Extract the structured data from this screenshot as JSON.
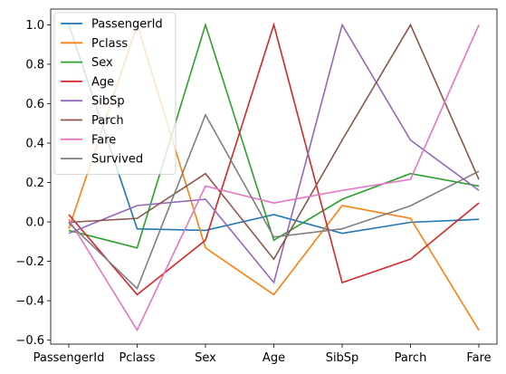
{
  "chart_data": {
    "type": "line",
    "title": "",
    "xlabel": "",
    "ylabel": "",
    "categories": [
      "PassengerId",
      "Pclass",
      "Sex",
      "Age",
      "SibSp",
      "Parch",
      "Fare"
    ],
    "ylim": [
      -0.62,
      1.08
    ],
    "yticks": [
      "1.0",
      "0.8",
      "0.6",
      "0.4",
      "0.2",
      "0.0",
      "−0.2",
      "−0.4",
      "−0.6"
    ],
    "ytick_values": [
      1.0,
      0.8,
      0.6,
      0.4,
      0.2,
      0.0,
      -0.2,
      -0.4,
      -0.6
    ],
    "grid": false,
    "legend_position": "top-left",
    "series": [
      {
        "name": "PassengerId",
        "color": "#1f77b4",
        "values": [
          1.0,
          -0.035,
          -0.043,
          0.037,
          -0.058,
          -0.002,
          0.013
        ]
      },
      {
        "name": "Pclass",
        "color": "#ff7f0e",
        "values": [
          -0.035,
          1.0,
          -0.132,
          -0.369,
          0.083,
          0.018,
          -0.549
        ]
      },
      {
        "name": "Sex",
        "color": "#2ca02c",
        "values": [
          -0.043,
          -0.132,
          1.0,
          -0.093,
          0.115,
          0.245,
          0.182
        ]
      },
      {
        "name": "Age",
        "color": "#d62728",
        "values": [
          0.037,
          -0.369,
          -0.093,
          1.0,
          -0.308,
          -0.189,
          0.096
        ]
      },
      {
        "name": "SibSp",
        "color": "#9467bd",
        "values": [
          -0.058,
          0.083,
          0.115,
          -0.308,
          1.0,
          0.415,
          0.16
        ]
      },
      {
        "name": "Parch",
        "color": "#8c564b",
        "values": [
          -0.002,
          0.018,
          0.245,
          -0.189,
          0.415,
          1.0,
          0.216
        ]
      },
      {
        "name": "Fare",
        "color": "#e377c2",
        "values": [
          0.013,
          -0.549,
          0.182,
          0.096,
          0.16,
          0.216,
          1.0
        ]
      },
      {
        "name": "Survived",
        "color": "#7f7f7f",
        "values": [
          -0.005,
          -0.338,
          0.543,
          -0.077,
          -0.035,
          0.082,
          0.257
        ]
      }
    ]
  }
}
